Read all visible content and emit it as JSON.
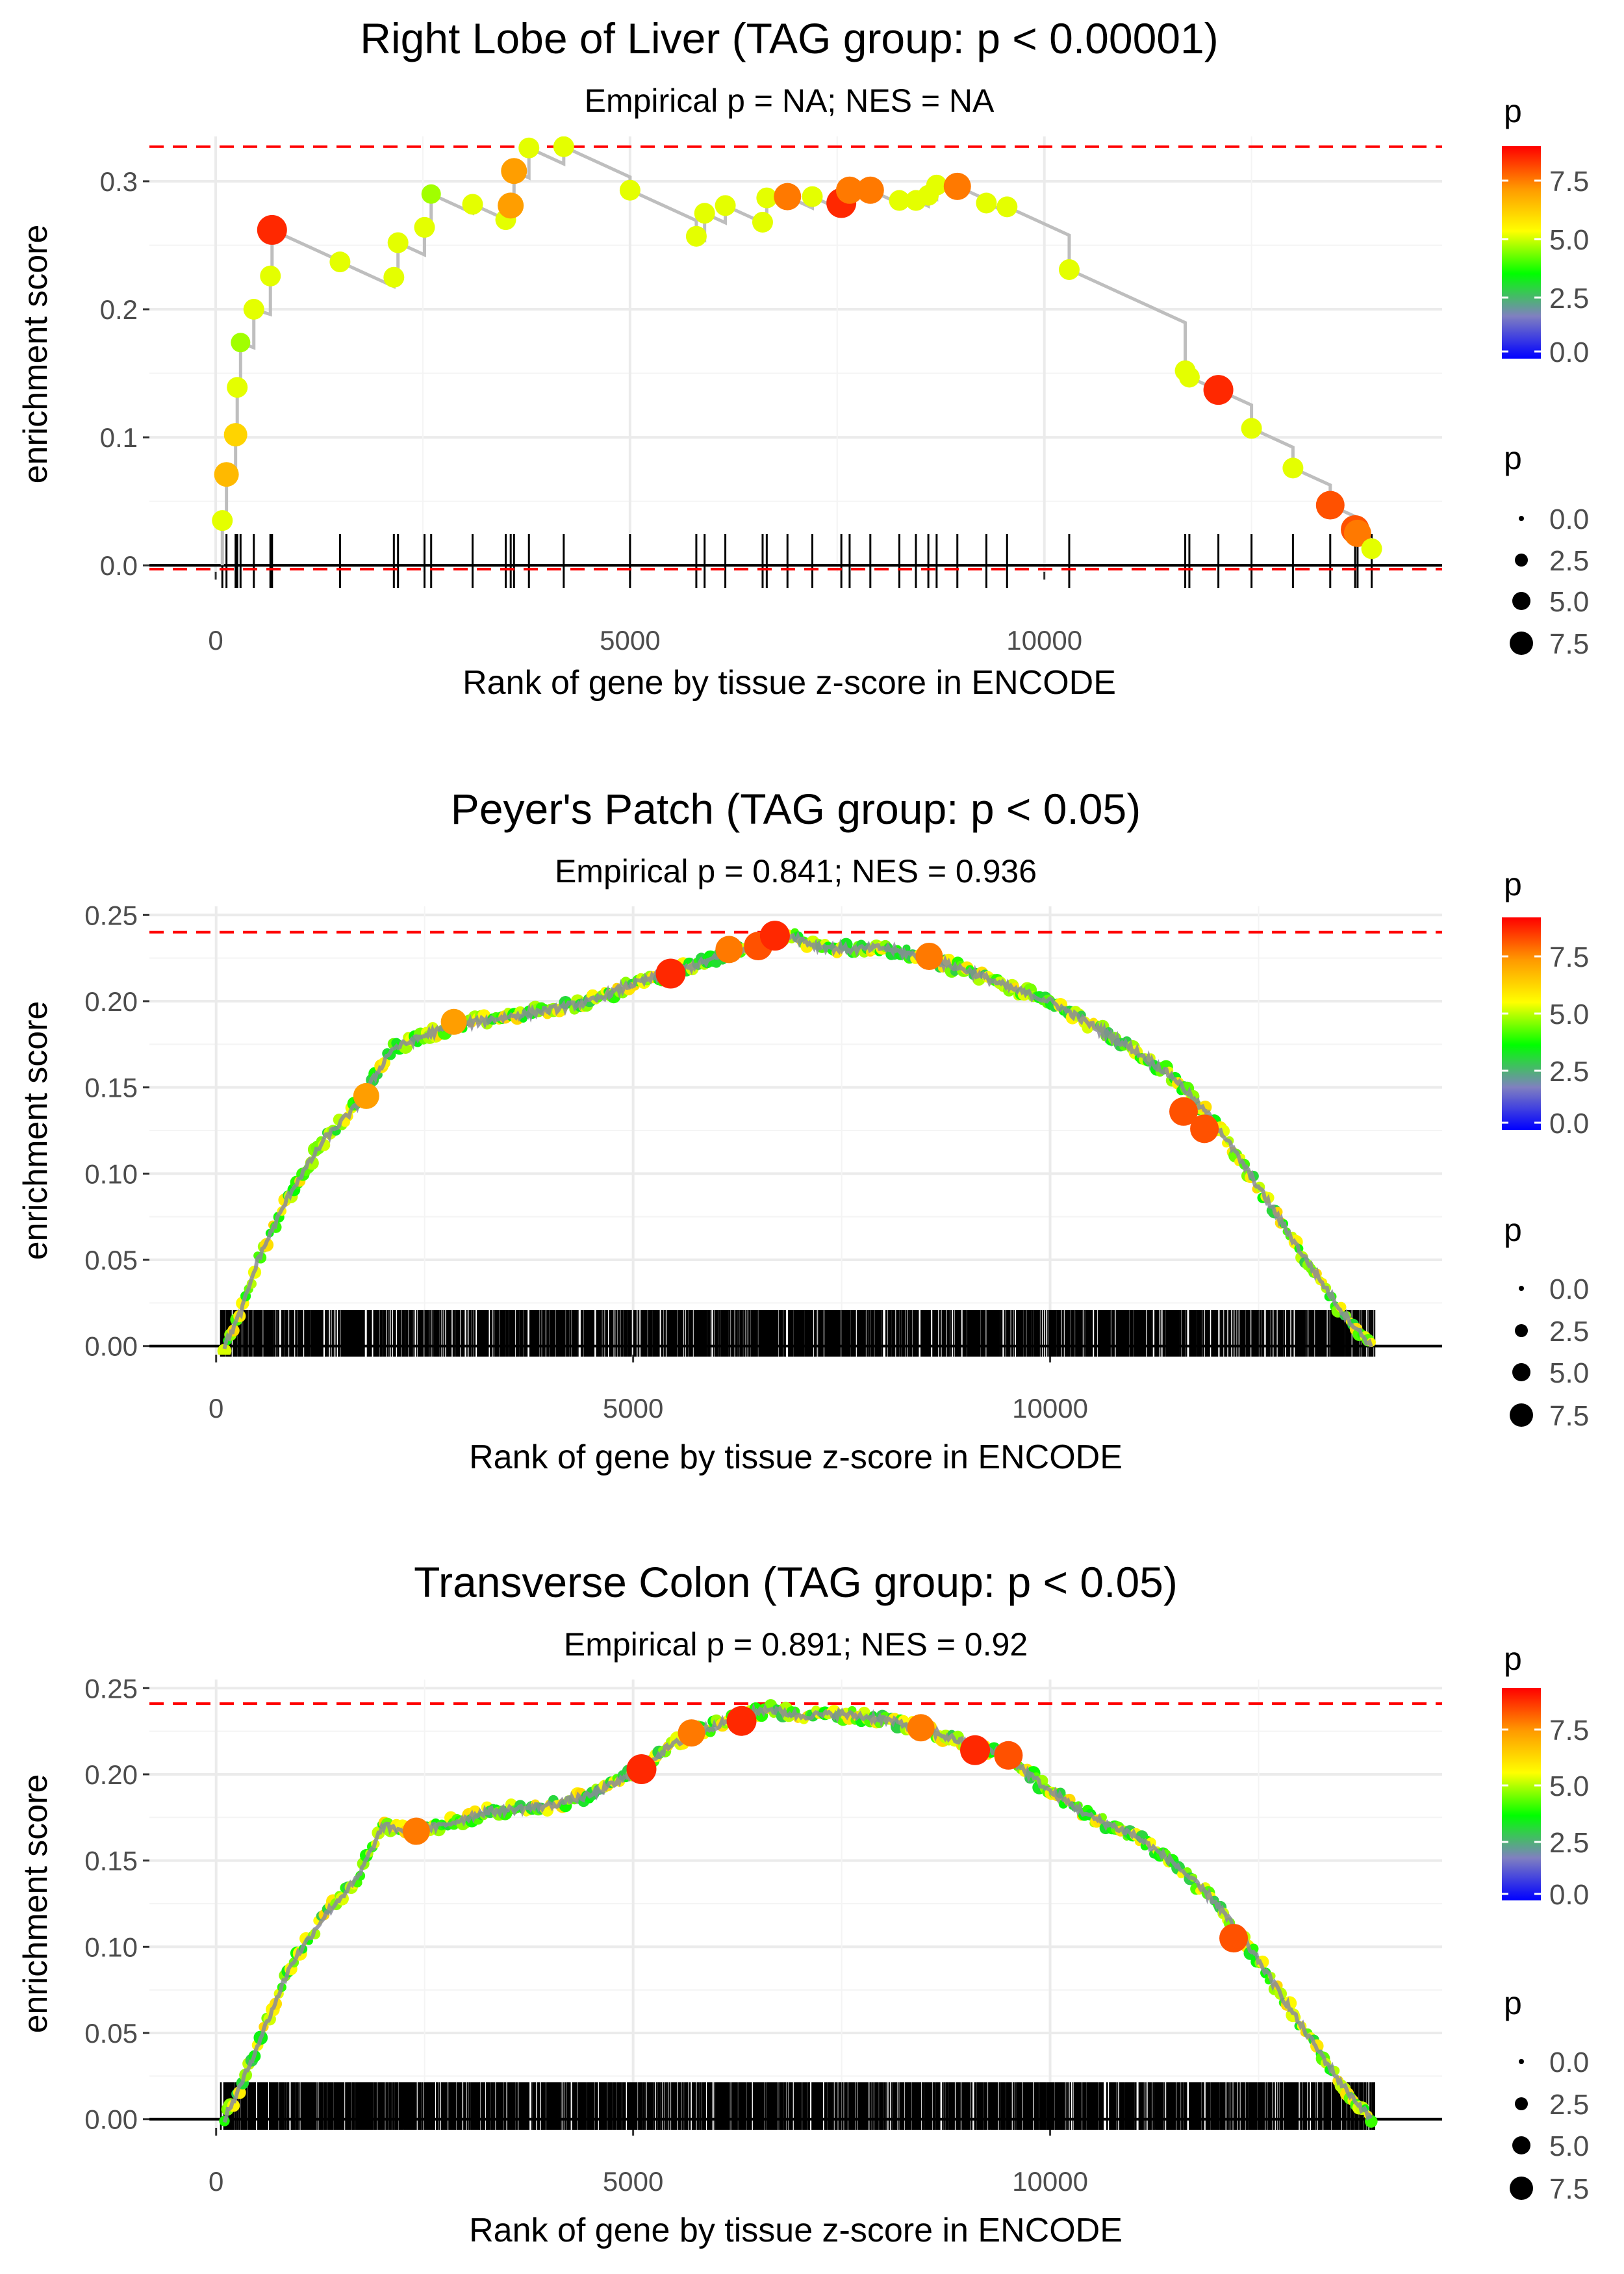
{
  "colors": {
    "hline": "#ff0000",
    "line": "#bebebe",
    "grid": "#ebebeb",
    "axis": "#000000",
    "gradient": [
      "#0000ff",
      "#8080c0",
      "#00ff00",
      "#ffff00",
      "#ff9900",
      "#ff0000"
    ]
  },
  "chart_data": [
    {
      "type": "line",
      "title": "Right Lobe of Liver (TAG group: p < 0.00001)",
      "subtitle": "Empirical p = NA; NES = NA",
      "xlabel": "Rank of gene by tissue z-score in ENCODE",
      "ylabel": "enrichment score",
      "xlim": [
        -800,
        14800
      ],
      "ylim": [
        -0.005,
        0.335
      ],
      "xticks": [
        0,
        5000,
        10000
      ],
      "xtick_labels": [
        "0",
        "5000",
        "10000"
      ],
      "yticks": [
        0,
        0.1,
        0.2,
        0.3
      ],
      "ytick_labels": [
        "0.0",
        "0.1",
        "0.2",
        "0.3"
      ],
      "hlines": [
        0.327,
        -0.003
      ],
      "mode": "stepped",
      "drop_rate": 2.96e-05,
      "points": [
        {
          "x": 80,
          "y": 0.035,
          "p": 5.5
        },
        {
          "x": 130,
          "y": 0.071,
          "p": 7.0
        },
        {
          "x": 240,
          "y": 0.102,
          "p": 6.5
        },
        {
          "x": 260,
          "y": 0.139,
          "p": 5.5
        },
        {
          "x": 300,
          "y": 0.174,
          "p": 5.0
        },
        {
          "x": 460,
          "y": 0.2,
          "p": 5.5
        },
        {
          "x": 660,
          "y": 0.226,
          "p": 5.5
        },
        {
          "x": 680,
          "y": 0.262,
          "p": 9.0
        },
        {
          "x": 1500,
          "y": 0.237,
          "p": 5.5
        },
        {
          "x": 2150,
          "y": 0.225,
          "p": 5.5
        },
        {
          "x": 2200,
          "y": 0.252,
          "p": 5.5
        },
        {
          "x": 2520,
          "y": 0.264,
          "p": 5.5
        },
        {
          "x": 2600,
          "y": 0.29,
          "p": 5.0
        },
        {
          "x": 3100,
          "y": 0.282,
          "p": 5.5
        },
        {
          "x": 3500,
          "y": 0.27,
          "p": 5.5
        },
        {
          "x": 3560,
          "y": 0.281,
          "p": 7.5
        },
        {
          "x": 3600,
          "y": 0.308,
          "p": 7.5
        },
        {
          "x": 3780,
          "y": 0.326,
          "p": 5.5
        },
        {
          "x": 4200,
          "y": 0.327,
          "p": 5.5
        },
        {
          "x": 5000,
          "y": 0.293,
          "p": 5.5
        },
        {
          "x": 5800,
          "y": 0.257,
          "p": 5.5
        },
        {
          "x": 5900,
          "y": 0.275,
          "p": 5.5
        },
        {
          "x": 6150,
          "y": 0.281,
          "p": 5.5
        },
        {
          "x": 6600,
          "y": 0.268,
          "p": 5.5
        },
        {
          "x": 6650,
          "y": 0.287,
          "p": 5.5
        },
        {
          "x": 6900,
          "y": 0.288,
          "p": 8.0
        },
        {
          "x": 7200,
          "y": 0.288,
          "p": 5.5
        },
        {
          "x": 7550,
          "y": 0.283,
          "p": 9.0
        },
        {
          "x": 7650,
          "y": 0.293,
          "p": 8.0
        },
        {
          "x": 7900,
          "y": 0.293,
          "p": 8.0
        },
        {
          "x": 8250,
          "y": 0.285,
          "p": 5.5
        },
        {
          "x": 8450,
          "y": 0.285,
          "p": 5.5
        },
        {
          "x": 8600,
          "y": 0.289,
          "p": 5.5
        },
        {
          "x": 8700,
          "y": 0.297,
          "p": 5.5
        },
        {
          "x": 8950,
          "y": 0.296,
          "p": 8.0
        },
        {
          "x": 9300,
          "y": 0.283,
          "p": 5.5
        },
        {
          "x": 9550,
          "y": 0.28,
          "p": 5.5
        },
        {
          "x": 10300,
          "y": 0.231,
          "p": 5.5
        },
        {
          "x": 11700,
          "y": 0.152,
          "p": 5.5
        },
        {
          "x": 11750,
          "y": 0.147,
          "p": 5.5
        },
        {
          "x": 12100,
          "y": 0.137,
          "p": 9.0
        },
        {
          "x": 12500,
          "y": 0.107,
          "p": 5.5
        },
        {
          "x": 13000,
          "y": 0.076,
          "p": 5.5
        },
        {
          "x": 13450,
          "y": 0.047,
          "p": 8.5
        },
        {
          "x": 13750,
          "y": 0.028,
          "p": 8.5
        },
        {
          "x": 13780,
          "y": 0.025,
          "p": 8.0
        },
        {
          "x": 13950,
          "y": 0.013,
          "p": 5.5
        }
      ],
      "legend_title": "p",
      "colorbar_labels": [
        "7.5",
        "5.0",
        "2.5",
        "0.0"
      ],
      "size_labels": [
        "0.0",
        "2.5",
        "5.0",
        "7.5"
      ]
    },
    {
      "type": "line",
      "title": "Peyer's Patch (TAG group: p < 0.05)",
      "subtitle": "Empirical p = 0.841; NES = 0.936",
      "xlabel": "Rank of gene by tissue z-score in ENCODE",
      "ylabel": "enrichment score",
      "xlim": [
        -800,
        14700
      ],
      "ylim": [
        -0.005,
        0.255
      ],
      "xticks": [
        0,
        5000,
        10000
      ],
      "xtick_labels": [
        "0",
        "5000",
        "10000"
      ],
      "yticks": [
        0,
        0.05,
        0.1,
        0.15,
        0.2,
        0.25
      ],
      "ytick_labels": [
        "0.00",
        "0.05",
        "0.10",
        "0.15",
        "0.20",
        "0.25"
      ],
      "hlines": [
        0.24
      ],
      "mode": "dense",
      "n_hits": 2500,
      "rank_start": 50,
      "rank_end": 13900,
      "curve": [
        [
          100,
          0.0
        ],
        [
          300,
          0.02
        ],
        [
          500,
          0.05
        ],
        [
          900,
          0.09
        ],
        [
          1300,
          0.12
        ],
        [
          1700,
          0.14
        ],
        [
          2100,
          0.172
        ],
        [
          2600,
          0.182
        ],
        [
          3000,
          0.187
        ],
        [
          3500,
          0.191
        ],
        [
          4000,
          0.195
        ],
        [
          4500,
          0.2
        ],
        [
          5000,
          0.21
        ],
        [
          5500,
          0.217
        ],
        [
          6000,
          0.225
        ],
        [
          6500,
          0.233
        ],
        [
          6900,
          0.238
        ],
        [
          7200,
          0.232
        ],
        [
          7600,
          0.23
        ],
        [
          8000,
          0.231
        ],
        [
          8500,
          0.225
        ],
        [
          9000,
          0.218
        ],
        [
          9500,
          0.208
        ],
        [
          10000,
          0.2
        ],
        [
          10500,
          0.186
        ],
        [
          11000,
          0.172
        ],
        [
          11500,
          0.155
        ],
        [
          12000,
          0.128
        ],
        [
          12500,
          0.092
        ],
        [
          13000,
          0.055
        ],
        [
          13500,
          0.02
        ],
        [
          13850,
          0.0
        ]
      ],
      "highlights": [
        {
          "x": 1800,
          "y": 0.145,
          "p": 7.5
        },
        {
          "x": 2850,
          "y": 0.188,
          "p": 7.5
        },
        {
          "x": 5450,
          "y": 0.216,
          "p": 9.0
        },
        {
          "x": 6150,
          "y": 0.23,
          "p": 8.0
        },
        {
          "x": 6500,
          "y": 0.232,
          "p": 8.5
        },
        {
          "x": 6700,
          "y": 0.238,
          "p": 9.0
        },
        {
          "x": 8550,
          "y": 0.226,
          "p": 8.0
        },
        {
          "x": 11600,
          "y": 0.136,
          "p": 8.5
        },
        {
          "x": 11850,
          "y": 0.126,
          "p": 8.5
        }
      ],
      "legend_title": "p",
      "colorbar_labels": [
        "7.5",
        "5.0",
        "2.5",
        "0.0"
      ],
      "size_labels": [
        "0.0",
        "2.5",
        "5.0",
        "7.5"
      ]
    },
    {
      "type": "line",
      "title": "Transverse Colon (TAG group: p < 0.05)",
      "subtitle": "Empirical p = 0.891; NES = 0.92",
      "xlabel": "Rank of gene by tissue z-score in ENCODE",
      "ylabel": "enrichment score",
      "xlim": [
        -800,
        14700
      ],
      "ylim": [
        -0.005,
        0.255
      ],
      "xticks": [
        0,
        5000,
        10000
      ],
      "xtick_labels": [
        "0",
        "5000",
        "10000"
      ],
      "yticks": [
        0,
        0.05,
        0.1,
        0.15,
        0.2,
        0.25
      ],
      "ytick_labels": [
        "0.00",
        "0.05",
        "0.10",
        "0.15",
        "0.20",
        "0.25"
      ],
      "hlines": [
        0.241
      ],
      "mode": "dense",
      "n_hits": 2500,
      "rank_start": 50,
      "rank_end": 13900,
      "curve": [
        [
          100,
          0.0
        ],
        [
          300,
          0.02
        ],
        [
          600,
          0.055
        ],
        [
          900,
          0.09
        ],
        [
          1300,
          0.118
        ],
        [
          1700,
          0.14
        ],
        [
          2000,
          0.17
        ],
        [
          2300,
          0.167
        ],
        [
          2700,
          0.17
        ],
        [
          3200,
          0.178
        ],
        [
          3600,
          0.18
        ],
        [
          4000,
          0.182
        ],
        [
          4500,
          0.188
        ],
        [
          5000,
          0.2
        ],
        [
          5400,
          0.215
        ],
        [
          5800,
          0.225
        ],
        [
          6200,
          0.232
        ],
        [
          6600,
          0.238
        ],
        [
          7000,
          0.234
        ],
        [
          7500,
          0.235
        ],
        [
          8000,
          0.232
        ],
        [
          8500,
          0.226
        ],
        [
          9000,
          0.218
        ],
        [
          9500,
          0.21
        ],
        [
          10000,
          0.19
        ],
        [
          10500,
          0.175
        ],
        [
          11000,
          0.165
        ],
        [
          11500,
          0.148
        ],
        [
          12000,
          0.125
        ],
        [
          12500,
          0.092
        ],
        [
          13000,
          0.055
        ],
        [
          13500,
          0.02
        ],
        [
          13850,
          0.0
        ]
      ],
      "highlights": [
        {
          "x": 2400,
          "y": 0.167,
          "p": 8.0
        },
        {
          "x": 5100,
          "y": 0.203,
          "p": 9.0
        },
        {
          "x": 5700,
          "y": 0.224,
          "p": 8.0
        },
        {
          "x": 6300,
          "y": 0.231,
          "p": 9.0
        },
        {
          "x": 8450,
          "y": 0.227,
          "p": 8.0
        },
        {
          "x": 9100,
          "y": 0.214,
          "p": 9.0
        },
        {
          "x": 9500,
          "y": 0.211,
          "p": 8.5
        },
        {
          "x": 12200,
          "y": 0.105,
          "p": 8.5
        }
      ],
      "legend_title": "p",
      "colorbar_labels": [
        "7.5",
        "5.0",
        "2.5",
        "0.0"
      ],
      "size_labels": [
        "0.0",
        "2.5",
        "5.0",
        "7.5"
      ]
    }
  ]
}
